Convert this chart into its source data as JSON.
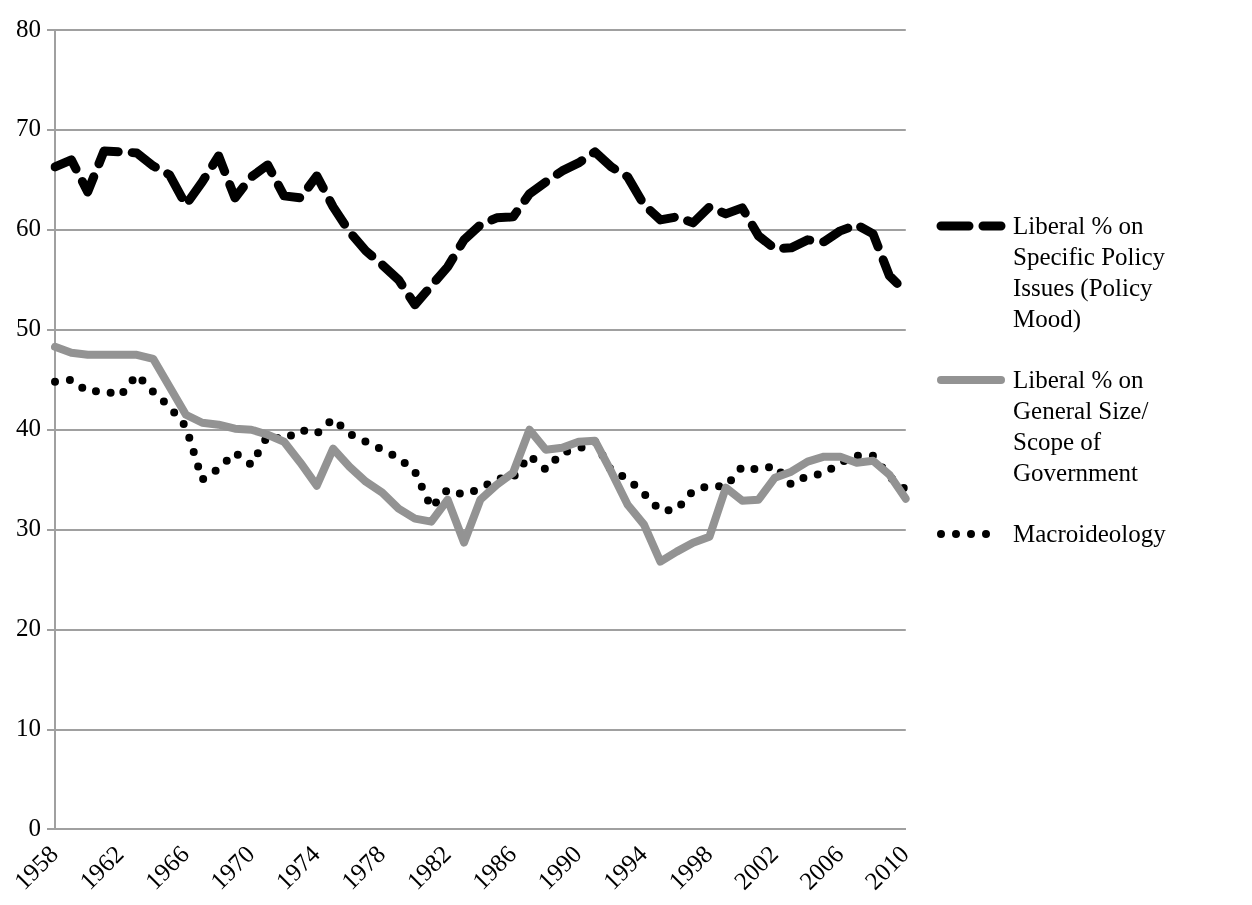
{
  "chart_data": {
    "type": "line",
    "categories": [
      "1958",
      null,
      null,
      null,
      "1962",
      null,
      null,
      null,
      "1966",
      null,
      null,
      null,
      "1970",
      null,
      null,
      null,
      "1974",
      null,
      null,
      null,
      "1978",
      null,
      null,
      null,
      "1982",
      null,
      null,
      null,
      "1986",
      null,
      null,
      null,
      "1990",
      null,
      null,
      null,
      "1994",
      null,
      null,
      null,
      "1998",
      null,
      null,
      null,
      "2002",
      null,
      null,
      null,
      "2006",
      null,
      null,
      null,
      "2010"
    ],
    "series": [
      {
        "name": "Liberal % on Specific Policy Issues (Policy Mood)",
        "color": "#000000",
        "line_style": "dashed",
        "values": [
          66.3,
          67.0,
          63.8,
          67.9,
          67.8,
          67.7,
          66.4,
          65.5,
          62.5,
          64.8,
          67.4,
          63.2,
          65.3,
          66.5,
          63.4,
          63.2,
          65.4,
          62.3,
          59.8,
          57.9,
          56.5,
          55.0,
          52.5,
          54.4,
          56.3,
          59.0,
          60.5,
          61.2,
          61.3,
          63.6,
          64.8,
          65.9,
          66.7,
          67.8,
          66.3,
          65.3,
          62.5,
          61.0,
          61.3,
          60.7,
          62.3,
          61.6,
          62.2,
          59.4,
          58.1,
          58.2,
          59.0,
          58.8,
          59.9,
          60.5,
          59.6,
          55.4,
          53.8
        ]
      },
      {
        "name": "Liberal % on General Size/ Scope of Government",
        "color": "#939393",
        "line_style": "solid",
        "values": [
          48.3,
          47.7,
          47.5,
          47.5,
          47.5,
          47.5,
          47.1,
          44.3,
          41.5,
          40.7,
          40.5,
          40.1,
          40.0,
          39.5,
          38.8,
          36.7,
          34.4,
          38.1,
          36.3,
          34.8,
          33.7,
          32.1,
          31.1,
          30.8,
          33.0,
          28.7,
          33.0,
          34.5,
          35.7,
          40.0,
          38.0,
          38.2,
          38.8,
          38.9,
          35.8,
          32.5,
          30.5,
          26.8,
          27.8,
          28.7,
          29.3,
          34.2,
          32.9,
          33.0,
          35.2,
          35.8,
          36.8,
          37.3,
          37.3,
          36.7,
          36.9,
          35.5,
          33.1
        ]
      },
      {
        "name": "Macroideology",
        "color": "#000000",
        "line_style": "dotted",
        "values": [
          44.8,
          45.0,
          43.8,
          43.9,
          43.4,
          45.5,
          43.8,
          42.3,
          40.3,
          35.0,
          36.1,
          37.7,
          36.5,
          39.4,
          39.0,
          40.0,
          39.6,
          41.1,
          39.6,
          38.8,
          38.0,
          37.2,
          35.8,
          32.2,
          34.0,
          33.5,
          34.1,
          35.1,
          35.2,
          37.4,
          36.0,
          37.7,
          38.1,
          38.8,
          35.9,
          35.1,
          33.6,
          31.9,
          32.0,
          33.9,
          34.4,
          34.3,
          36.3,
          36.0,
          36.4,
          34.5,
          35.4,
          35.6,
          36.7,
          37.4,
          37.4,
          35.3,
          34.0
        ]
      }
    ],
    "ylim": [
      0,
      80
    ],
    "yticks": [
      0,
      10,
      20,
      30,
      40,
      50,
      60,
      70,
      80
    ],
    "grid": "y",
    "legend": "right",
    "marker": "none"
  }
}
